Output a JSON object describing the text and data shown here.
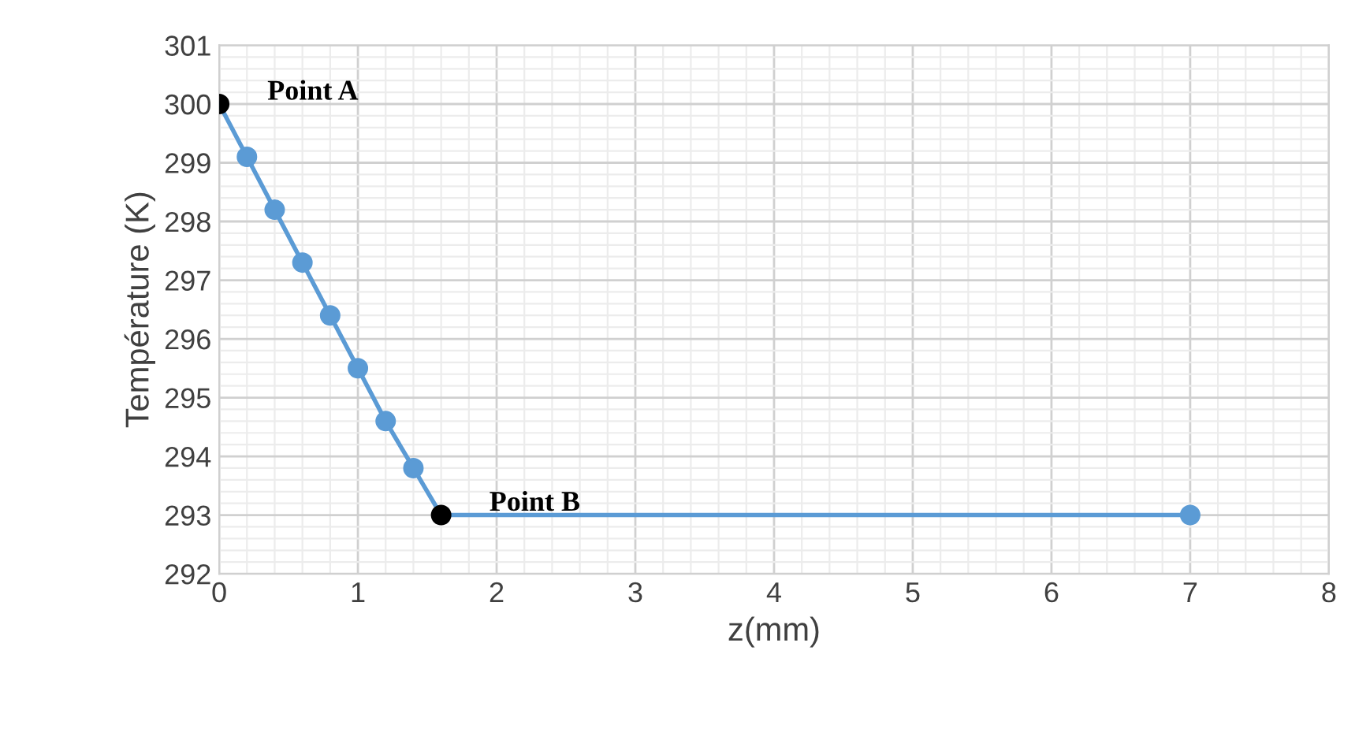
{
  "chart_data": {
    "type": "line",
    "xlabel": "z(mm)",
    "ylabel": "Température (K)",
    "x": [
      0,
      0.2,
      0.4,
      0.6,
      0.8,
      1.0,
      1.2,
      1.4,
      1.6,
      7
    ],
    "series": [
      {
        "color": "#5b9bd5",
        "values": [
          300,
          299.1,
          298.2,
          297.3,
          296.4,
          295.5,
          294.6,
          293.8,
          293,
          293
        ],
        "colors": [
          "#000000",
          "#5b9bd5",
          "#5b9bd5",
          "#5b9bd5",
          "#5b9bd5",
          "#5b9bd5",
          "#5b9bd5",
          "#5b9bd5",
          "#000000",
          "#5b9bd5"
        ]
      }
    ],
    "xlim": [
      0,
      8
    ],
    "xticks": [
      0,
      1,
      2,
      3,
      4,
      5,
      6,
      7,
      8
    ],
    "ylim": [
      292,
      301
    ],
    "yticks": [
      292,
      293,
      294,
      295,
      296,
      297,
      298,
      299,
      300,
      301
    ],
    "grid": true,
    "marker": "circle",
    "line_style": "solid",
    "annotations": [
      {
        "text": "Point A",
        "x": 0,
        "y": 300
      },
      {
        "text": "Point B",
        "x": 1.6,
        "y": 293
      }
    ]
  }
}
